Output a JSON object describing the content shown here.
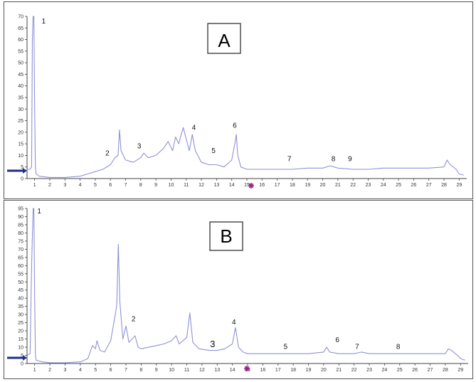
{
  "chart_data": [
    {
      "type": "line",
      "panel_label": "A",
      "xlim": [
        0.5,
        29.5
      ],
      "ylim": [
        0,
        70
      ],
      "x_ticks": [
        "1",
        "2",
        "3",
        "4",
        "5",
        "6",
        "7",
        "8",
        "9",
        "10",
        "11",
        "12",
        "13",
        "14",
        "15",
        "16",
        "17",
        "18",
        "19",
        "20",
        "21",
        "22",
        "23",
        "24",
        "25",
        "26",
        "27",
        "28",
        "29"
      ],
      "y_ticks": [
        "0",
        "5",
        "10",
        "15",
        "20",
        "25",
        "30",
        "35",
        "40",
        "45",
        "50",
        "55",
        "60",
        "65",
        "70"
      ],
      "series": [
        {
          "color": "#8f92d6",
          "points": [
            [
              0.5,
              4
            ],
            [
              0.7,
              4
            ],
            [
              0.8,
              5
            ],
            [
              0.85,
              60
            ],
            [
              0.9,
              70
            ],
            [
              0.95,
              70
            ],
            [
              1.0,
              30
            ],
            [
              1.05,
              5
            ],
            [
              1.1,
              2
            ],
            [
              1.3,
              1
            ],
            [
              2,
              0.5
            ],
            [
              3,
              0.5
            ],
            [
              4,
              1
            ],
            [
              4.5,
              2
            ],
            [
              5,
              3
            ],
            [
              5.5,
              4
            ],
            [
              6,
              6
            ],
            [
              6.3,
              9
            ],
            [
              6.5,
              10
            ],
            [
              6.6,
              21
            ],
            [
              6.7,
              12
            ],
            [
              7,
              8
            ],
            [
              7.5,
              7
            ],
            [
              8,
              9
            ],
            [
              8.2,
              11
            ],
            [
              8.5,
              9
            ],
            [
              9,
              10
            ],
            [
              9.5,
              13
            ],
            [
              9.8,
              16
            ],
            [
              10.1,
              12
            ],
            [
              10.3,
              18
            ],
            [
              10.5,
              15
            ],
            [
              10.8,
              22
            ],
            [
              11,
              17
            ],
            [
              11.2,
              12
            ],
            [
              11.4,
              19
            ],
            [
              11.6,
              12
            ],
            [
              12,
              7
            ],
            [
              12.5,
              6
            ],
            [
              13,
              6
            ],
            [
              13.5,
              5
            ],
            [
              14,
              8
            ],
            [
              14.2,
              15
            ],
            [
              14.3,
              19
            ],
            [
              14.4,
              10
            ],
            [
              14.6,
              5
            ],
            [
              15,
              4
            ],
            [
              16,
              4
            ],
            [
              17,
              4
            ],
            [
              18,
              4
            ],
            [
              19,
              4.5
            ],
            [
              20,
              4.5
            ],
            [
              20.5,
              5.5
            ],
            [
              21,
              4.5
            ],
            [
              22,
              4
            ],
            [
              23,
              4
            ],
            [
              24,
              4.5
            ],
            [
              25,
              4.5
            ],
            [
              26,
              4.5
            ],
            [
              27,
              4.5
            ],
            [
              28,
              5
            ],
            [
              28.2,
              8
            ],
            [
              28.4,
              6
            ],
            [
              28.8,
              4
            ],
            [
              29,
              2
            ],
            [
              29.3,
              1.5
            ]
          ]
        }
      ],
      "peak_labels": [
        {
          "text": "1",
          "x": 1.6,
          "y": 67
        },
        {
          "text": "2",
          "x": 5.8,
          "y": 10
        },
        {
          "text": "3",
          "x": 7.9,
          "y": 13
        },
        {
          "text": "4",
          "x": 11.5,
          "y": 21
        },
        {
          "text": "5",
          "x": 12.8,
          "y": 11
        },
        {
          "text": "6",
          "x": 14.2,
          "y": 22
        },
        {
          "text": "7",
          "x": 17.8,
          "y": 7.5
        },
        {
          "text": "8",
          "x": 20.7,
          "y": 7.5
        },
        {
          "text": "9",
          "x": 21.8,
          "y": 7.5
        }
      ]
    },
    {
      "type": "line",
      "panel_label": "B",
      "xlim": [
        0.5,
        29.5
      ],
      "ylim": [
        0,
        95
      ],
      "x_ticks": [
        "1",
        "2",
        "3",
        "4",
        "5",
        "6",
        "7",
        "8",
        "9",
        "10",
        "11",
        "12",
        "13",
        "14",
        "15",
        "16",
        "17",
        "18",
        "19",
        "20",
        "21",
        "22",
        "23",
        "24",
        "25",
        "26",
        "27",
        "28",
        "29"
      ],
      "y_ticks": [
        "0",
        "5",
        "10",
        "15",
        "20",
        "25",
        "30",
        "35",
        "40",
        "45",
        "50",
        "55",
        "60",
        "65",
        "70",
        "75",
        "80",
        "85",
        "90",
        "95"
      ],
      "series": [
        {
          "color": "#8f92d6",
          "points": [
            [
              0.5,
              5
            ],
            [
              0.7,
              6
            ],
            [
              0.8,
              60
            ],
            [
              0.9,
              95
            ],
            [
              0.95,
              95
            ],
            [
              1.0,
              40
            ],
            [
              1.05,
              5
            ],
            [
              1.1,
              2
            ],
            [
              1.5,
              1
            ],
            [
              2,
              0.5
            ],
            [
              3,
              0.5
            ],
            [
              4,
              1
            ],
            [
              4.5,
              3
            ],
            [
              4.8,
              11
            ],
            [
              5,
              9
            ],
            [
              5.1,
              14
            ],
            [
              5.3,
              8
            ],
            [
              5.6,
              7
            ],
            [
              6,
              14
            ],
            [
              6.3,
              30
            ],
            [
              6.4,
              36
            ],
            [
              6.5,
              73
            ],
            [
              6.6,
              38
            ],
            [
              6.8,
              15
            ],
            [
              7,
              23
            ],
            [
              7.2,
              13
            ],
            [
              7.6,
              17
            ],
            [
              7.8,
              10
            ],
            [
              8,
              9
            ],
            [
              9,
              11
            ],
            [
              9.5,
              12
            ],
            [
              10,
              14
            ],
            [
              10.3,
              17
            ],
            [
              10.5,
              12
            ],
            [
              11,
              16
            ],
            [
              11.2,
              31
            ],
            [
              11.4,
              13
            ],
            [
              11.8,
              9
            ],
            [
              12.5,
              8
            ],
            [
              13,
              8
            ],
            [
              13.5,
              9
            ],
            [
              14,
              12
            ],
            [
              14.2,
              22
            ],
            [
              14.4,
              10
            ],
            [
              14.7,
              7
            ],
            [
              15,
              6
            ],
            [
              16,
              6
            ],
            [
              17,
              6
            ],
            [
              18,
              6
            ],
            [
              19,
              6
            ],
            [
              20,
              7
            ],
            [
              20.2,
              10
            ],
            [
              20.4,
              7
            ],
            [
              21,
              6
            ],
            [
              22,
              6
            ],
            [
              22.5,
              7
            ],
            [
              23,
              6
            ],
            [
              24,
              6
            ],
            [
              25,
              6
            ],
            [
              26,
              6
            ],
            [
              27,
              6
            ],
            [
              28,
              6
            ],
            [
              28.2,
              9
            ],
            [
              28.4,
              8
            ],
            [
              28.8,
              5
            ],
            [
              29,
              3
            ],
            [
              29.3,
              2
            ]
          ]
        }
      ],
      "peak_labels": [
        {
          "text": "1",
          "x": 1.3,
          "y": 92
        },
        {
          "text": "2",
          "x": 7.5,
          "y": 26
        },
        {
          "text": "3",
          "x": 12.7,
          "y": 10
        },
        {
          "text": "4",
          "x": 14.1,
          "y": 24
        },
        {
          "text": "5",
          "x": 17.5,
          "y": 9
        },
        {
          "text": "6",
          "x": 20.9,
          "y": 13
        },
        {
          "text": "7",
          "x": 22.2,
          "y": 9
        },
        {
          "text": "8",
          "x": 24.9,
          "y": 9
        }
      ]
    }
  ]
}
